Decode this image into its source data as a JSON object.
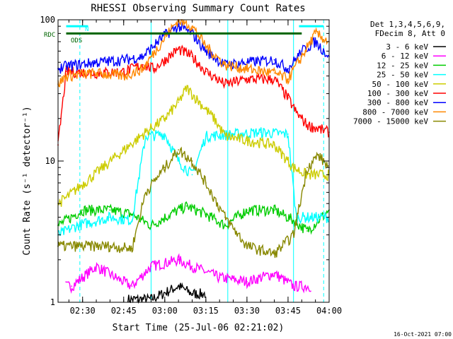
{
  "chart_data": {
    "type": "line",
    "title": "RHESSI Observing Summary Count Rates",
    "xlabel": "Start Time (25-Jul-06 02:21:02)",
    "ylabel": "Count Rate (s⁻¹ detector⁻¹)",
    "y_scale": "log",
    "ylim": [
      1,
      100
    ],
    "y_ticks": [
      {
        "value": 1,
        "label": "1"
      },
      {
        "value": 10,
        "label": "10"
      },
      {
        "value": 100,
        "label": "100"
      }
    ],
    "xlim": [
      "02:21:02",
      "04:00"
    ],
    "x_ticks": [
      {
        "time": "02:30",
        "label": "02:30"
      },
      {
        "time": "02:45",
        "label": "02:45"
      },
      {
        "time": "03:00",
        "label": "03:00"
      },
      {
        "time": "03:15",
        "label": "03:15"
      },
      {
        "time": "03:30",
        "label": "03:30"
      },
      {
        "time": "03:45",
        "label": "03:45"
      },
      {
        "time": "04:00",
        "label": "04:00"
      }
    ],
    "legend_header": [
      "Det 1,3,4,5,6,9,",
      "FDecim 8, Att 0"
    ],
    "legend_position": "top-right",
    "footer": "16-Oct-2021 07:00",
    "flag_labels": [
      {
        "label": "RDC",
        "color": "#006400"
      },
      {
        "label": "N",
        "color": "#00ffff"
      },
      {
        "label": "ODS",
        "color": "#006400"
      }
    ],
    "series": [
      {
        "name": "3 - 6 keV",
        "color": "#000000",
        "points": [
          [
            "02:21:02",
            0
          ],
          [
            "02:38",
            0
          ],
          [
            "02:55",
            1.05
          ],
          [
            "03:05",
            1.3
          ],
          [
            "03:10",
            1.15
          ],
          [
            "03:20",
            0
          ],
          [
            "03:50",
            0
          ],
          [
            "04:00",
            0
          ]
        ]
      },
      {
        "name": "6 - 12 keV",
        "color": "#ff00ff",
        "points": [
          [
            "02:21:02",
            0
          ],
          [
            "02:26",
            1.3
          ],
          [
            "02:35",
            1.8
          ],
          [
            "02:42",
            1.5
          ],
          [
            "02:48",
            1.3
          ],
          [
            "02:55",
            1.8
          ],
          [
            "03:05",
            2.0
          ],
          [
            "03:10",
            1.8
          ],
          [
            "03:20",
            1.5
          ],
          [
            "03:30",
            1.4
          ],
          [
            "03:40",
            1.6
          ],
          [
            "03:47",
            1.3
          ],
          [
            "04:00",
            0
          ]
        ]
      },
      {
        "name": "12 - 25 keV",
        "color": "#00cc00",
        "points": [
          [
            "02:21:02",
            3.5
          ],
          [
            "02:30",
            4.5
          ],
          [
            "02:40",
            4.5
          ],
          [
            "02:48",
            4.2
          ],
          [
            "02:55",
            3.5
          ],
          [
            "03:02",
            4.2
          ],
          [
            "03:08",
            4.8
          ],
          [
            "03:15",
            4.2
          ],
          [
            "03:22",
            3.5
          ],
          [
            "03:30",
            4.5
          ],
          [
            "03:40",
            4.5
          ],
          [
            "03:47",
            3.8
          ],
          [
            "03:52",
            3.2
          ],
          [
            "04:00",
            4.5
          ]
        ]
      },
      {
        "name": "25 - 50 keV",
        "color": "#00ffff",
        "points": [
          [
            "02:21:02",
            3.0
          ],
          [
            "02:28",
            3.5
          ],
          [
            "02:40",
            4.0
          ],
          [
            "02:48",
            3.8
          ],
          [
            "02:53",
            15
          ],
          [
            "03:00",
            15.5
          ],
          [
            "03:05",
            10
          ],
          [
            "03:10",
            8
          ],
          [
            "03:15",
            15
          ],
          [
            "03:25",
            15.5
          ],
          [
            "03:35",
            16
          ],
          [
            "03:45",
            15.5
          ],
          [
            "03:48",
            4
          ],
          [
            "04:00",
            4
          ]
        ]
      },
      {
        "name": "50 - 100 keV",
        "color": "#cccc00",
        "points": [
          [
            "02:21:02",
            5
          ],
          [
            "02:24",
            5.5
          ],
          [
            "02:53",
            16
          ],
          [
            "03:00",
            20
          ],
          [
            "03:05",
            26
          ],
          [
            "03:08",
            33
          ],
          [
            "03:12",
            27
          ],
          [
            "03:18",
            20
          ],
          [
            "03:22",
            15
          ],
          [
            "03:30",
            14
          ],
          [
            "03:40",
            13
          ],
          [
            "03:47",
            9
          ],
          [
            "03:52",
            8
          ],
          [
            "04:00",
            8
          ]
        ]
      },
      {
        "name": "100 - 300 keV",
        "color": "#ff0000",
        "points": [
          [
            "02:21:02",
            13
          ],
          [
            "02:24",
            43
          ],
          [
            "02:35",
            42
          ],
          [
            "02:45",
            43
          ],
          [
            "02:52",
            48
          ],
          [
            "02:56",
            45
          ],
          [
            "03:05",
            62
          ],
          [
            "03:10",
            55
          ],
          [
            "03:15",
            43
          ],
          [
            "03:22",
            35
          ],
          [
            "03:30",
            38
          ],
          [
            "03:40",
            38
          ],
          [
            "03:45",
            28
          ],
          [
            "03:48",
            22
          ],
          [
            "03:52",
            18
          ],
          [
            "04:00",
            16
          ]
        ]
      },
      {
        "name": "300 - 800 keV",
        "color": "#0000ff",
        "points": [
          [
            "02:21:02",
            45
          ],
          [
            "02:24",
            47
          ],
          [
            "02:35",
            50
          ],
          [
            "02:45",
            52
          ],
          [
            "02:52",
            55
          ],
          [
            "03:00",
            78
          ],
          [
            "03:05",
            90
          ],
          [
            "03:10",
            80
          ],
          [
            "03:15",
            60
          ],
          [
            "03:22",
            48
          ],
          [
            "03:30",
            50
          ],
          [
            "03:40",
            52
          ],
          [
            "03:45",
            45
          ],
          [
            "03:50",
            60
          ],
          [
            "03:55",
            70
          ],
          [
            "04:00",
            55
          ]
        ]
      },
      {
        "name": "800 - 7000 keV",
        "color": "#ff8800",
        "points": [
          [
            "02:21:02",
            35
          ],
          [
            "02:24",
            40
          ],
          [
            "02:35",
            42
          ],
          [
            "02:45",
            40
          ],
          [
            "02:52",
            45
          ],
          [
            "03:00",
            75
          ],
          [
            "03:05",
            100
          ],
          [
            "03:10",
            90
          ],
          [
            "03:15",
            65
          ],
          [
            "03:22",
            48
          ],
          [
            "03:30",
            45
          ],
          [
            "03:40",
            42
          ],
          [
            "03:45",
            38
          ],
          [
            "03:50",
            55
          ],
          [
            "03:55",
            80
          ],
          [
            "04:00",
            70
          ]
        ]
      },
      {
        "name": "7000 - 15000 keV",
        "color": "#888800",
        "points": [
          [
            "02:21:02",
            2.5
          ],
          [
            "02:28",
            2.5
          ],
          [
            "02:40",
            2.5
          ],
          [
            "02:48",
            2.4
          ],
          [
            "02:53",
            6
          ],
          [
            "03:00",
            9
          ],
          [
            "03:05",
            12
          ],
          [
            "03:10",
            10
          ],
          [
            "03:15",
            7
          ],
          [
            "03:22",
            4
          ],
          [
            "03:30",
            2.5
          ],
          [
            "03:40",
            2.2
          ],
          [
            "03:47",
            3
          ],
          [
            "03:52",
            9
          ],
          [
            "03:56",
            11
          ],
          [
            "04:00",
            9
          ]
        ]
      }
    ],
    "horizontal_markers": [
      {
        "name": "RDC",
        "color": "#006400",
        "value": 80,
        "segments": [
          [
            "02:24",
            "03:50"
          ]
        ]
      },
      {
        "name": "N",
        "color": "#00ffff",
        "value": 90,
        "segments": [
          [
            "02:24",
            "02:32"
          ],
          [
            "03:49",
            "03:58"
          ]
        ]
      }
    ],
    "vertical_markers": [
      {
        "time": "02:29",
        "color": "#00ffff",
        "style": "dashed"
      },
      {
        "time": "03:58",
        "color": "#00ffff",
        "style": "dashed"
      },
      {
        "time": "02:55",
        "color": "#00ffff",
        "style": "solid"
      },
      {
        "time": "03:23",
        "color": "#00ffff",
        "style": "solid"
      },
      {
        "time": "03:47",
        "color": "#00ffff",
        "style": "solid"
      }
    ]
  }
}
